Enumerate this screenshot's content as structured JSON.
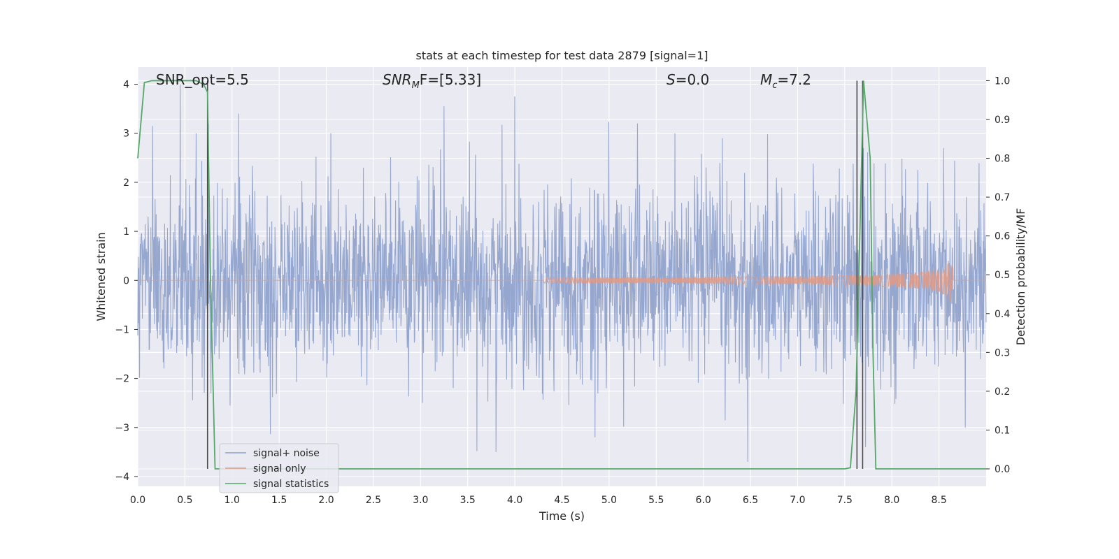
{
  "chart_data": {
    "type": "line",
    "title": "stats at each timestep for test data 2879 [signal=1]",
    "xlabel": "Time (s)",
    "ylabel": "Whitened strain",
    "ylabel_right": "Detection probability/MF",
    "xlim": [
      0,
      9.0
    ],
    "ylim": [
      -4.2,
      4.35
    ],
    "ylim_right": [
      -0.045,
      1.035
    ],
    "x_ticks": [
      0.0,
      0.5,
      1.0,
      1.5,
      2.0,
      2.5,
      3.0,
      3.5,
      4.0,
      4.5,
      5.0,
      5.5,
      6.0,
      6.5,
      7.0,
      7.5,
      8.0,
      8.5
    ],
    "y_ticks": [
      -4,
      -3,
      -2,
      -1,
      0,
      1,
      2,
      3,
      4
    ],
    "y_ticks_right": [
      0.0,
      0.1,
      0.2,
      0.3,
      0.4,
      0.5,
      0.6,
      0.7,
      0.8,
      0.9,
      1.0
    ],
    "grid": true,
    "legend_position": "lower-left",
    "annotations": [
      {
        "id": "snr-opt",
        "text": "SNR_opt=5.5"
      },
      {
        "id": "snr-mf",
        "prefix": "SNR",
        "sub": "M",
        "suffix": "F=[5.33]"
      },
      {
        "id": "s-stat",
        "prefix": "S",
        "suffix": "=0.0"
      },
      {
        "id": "mc",
        "prefix": "M",
        "sub": "c",
        "suffix": "=7.2"
      }
    ],
    "series": [
      {
        "name": "signal+ noise",
        "color": "#8da0cb",
        "axis": "left",
        "noise_amplitude": 1.0,
        "peaks": [
          [
            0.45,
            4.0
          ],
          [
            0.62,
            3.0
          ],
          [
            0.75,
            3.2
          ],
          [
            1.07,
            3.4
          ],
          [
            2.05,
            3.0
          ],
          [
            3.25,
            3.55
          ],
          [
            4.0,
            3.75
          ],
          [
            5.3,
            3.2
          ],
          [
            5.7,
            3.0
          ],
          [
            6.2,
            2.9
          ],
          [
            8.55,
            2.7
          ]
        ],
        "troughs": [
          [
            3.8,
            -3.5
          ],
          [
            4.85,
            -3.2
          ],
          [
            6.47,
            -3.7
          ],
          [
            7.72,
            -3.4
          ],
          [
            8.78,
            -3.0
          ]
        ]
      },
      {
        "name": "signal only",
        "color": "#e29a84",
        "axis": "left",
        "chirp_start": 4.3,
        "chirp_end": 8.65,
        "peak_amplitude": 0.65
      },
      {
        "name": "signal statistics",
        "color": "#55a868",
        "axis": "right",
        "x": [
          0.0,
          0.07,
          0.15,
          0.3,
          0.5,
          0.62,
          0.7,
          0.74,
          0.77,
          0.82,
          7.5,
          7.56,
          7.62,
          7.7,
          7.77,
          7.8,
          7.83,
          9.0
        ],
        "y": [
          0.8,
          0.995,
          1.0,
          1.0,
          1.0,
          1.0,
          0.99,
          0.97,
          0.5,
          0.0,
          0.0,
          0.003,
          0.2,
          1.0,
          0.8,
          0.3,
          0.0,
          0.0
        ]
      }
    ],
    "vertical_lines": [
      0.74,
      7.63,
      7.69
    ]
  }
}
